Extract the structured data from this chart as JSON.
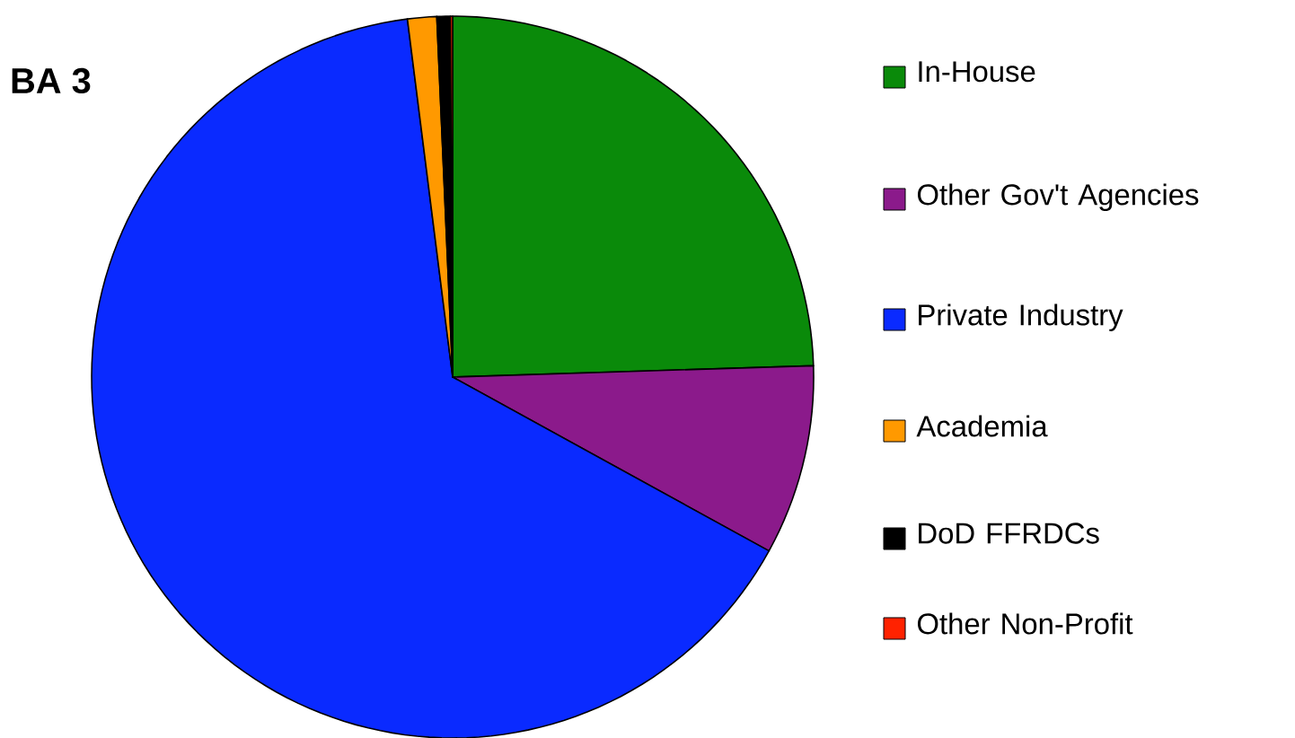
{
  "chart_data": {
    "type": "pie",
    "title": "BA 3",
    "categories": [
      "In-House",
      "Other Gov't Agencies",
      "Private Industry",
      "Academia",
      "DoD FFRDCs",
      "Other Non-Profit"
    ],
    "values": [
      24.5,
      8.5,
      65,
      1.3,
      0.6,
      0.1
    ],
    "colors": [
      "#0a8a0a",
      "#8b1a8b",
      "#0a2aff",
      "#ff9900",
      "#000000",
      "#ff2200"
    ],
    "legend": "right"
  }
}
